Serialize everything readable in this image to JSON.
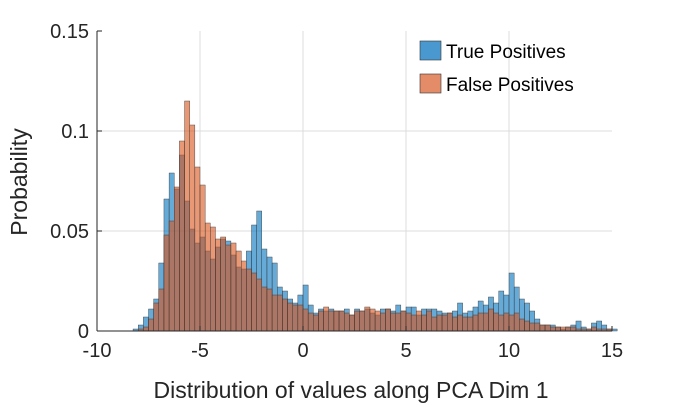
{
  "chart_data": {
    "type": "histogram",
    "title": "",
    "xlabel": "Distribution of values along PCA Dim 1",
    "ylabel": "Probability",
    "xlim": [
      -10,
      15
    ],
    "ylim": [
      0,
      0.15
    ],
    "xticks": [
      -10,
      -5,
      0,
      5,
      10,
      15
    ],
    "xtick_labels": [
      "-10",
      "-5",
      "0",
      "5",
      "10",
      "15"
    ],
    "yticks": [
      0,
      0.05,
      0.1,
      0.15
    ],
    "ytick_labels": [
      "0",
      "0.05",
      "0.1",
      "0.15"
    ],
    "grid": true,
    "legend_position": "top-right",
    "bin_edges_start": -8.5,
    "bin_width": 0.25,
    "series": [
      {
        "name": "True Positives",
        "color": "#0072BD",
        "values": [
          0.0,
          0.001,
          0.003,
          0.007,
          0.011,
          0.016,
          0.034,
          0.066,
          0.079,
          0.071,
          0.088,
          0.065,
          0.051,
          0.044,
          0.047,
          0.04,
          0.036,
          0.042,
          0.046,
          0.045,
          0.038,
          0.032,
          0.031,
          0.04,
          0.053,
          0.06,
          0.041,
          0.037,
          0.034,
          0.022,
          0.02,
          0.016,
          0.014,
          0.018,
          0.023,
          0.013,
          0.009,
          0.011,
          0.01,
          0.011,
          0.01,
          0.01,
          0.011,
          0.008,
          0.011,
          0.01,
          0.011,
          0.009,
          0.008,
          0.011,
          0.011,
          0.01,
          0.013,
          0.01,
          0.012,
          0.012,
          0.008,
          0.011,
          0.011,
          0.011,
          0.01,
          0.009,
          0.009,
          0.01,
          0.014,
          0.009,
          0.01,
          0.012,
          0.015,
          0.013,
          0.017,
          0.014,
          0.02,
          0.018,
          0.029,
          0.022,
          0.016,
          0.014,
          0.01,
          0.006,
          0.003,
          0.003,
          0.003,
          0.002,
          0.001,
          0.002,
          0.003,
          0.005,
          0.002,
          0.001,
          0.004,
          0.005,
          0.003,
          0.001,
          0.001,
          0.0,
          0.0,
          0.0,
          0.0,
          0.0,
          0.0,
          0.0
        ]
      },
      {
        "name": "False Positives",
        "color": "#D95319",
        "values": [
          0.0,
          0.0,
          0.001,
          0.002,
          0.006,
          0.014,
          0.021,
          0.048,
          0.055,
          0.072,
          0.095,
          0.115,
          0.103,
          0.082,
          0.073,
          0.054,
          0.052,
          0.046,
          0.047,
          0.043,
          0.044,
          0.04,
          0.035,
          0.031,
          0.029,
          0.026,
          0.022,
          0.021,
          0.018,
          0.018,
          0.016,
          0.014,
          0.013,
          0.013,
          0.011,
          0.009,
          0.008,
          0.01,
          0.012,
          0.01,
          0.01,
          0.01,
          0.009,
          0.008,
          0.01,
          0.01,
          0.012,
          0.011,
          0.01,
          0.009,
          0.011,
          0.009,
          0.009,
          0.01,
          0.009,
          0.008,
          0.01,
          0.008,
          0.01,
          0.007,
          0.008,
          0.008,
          0.009,
          0.007,
          0.008,
          0.007,
          0.007,
          0.008,
          0.009,
          0.009,
          0.011,
          0.009,
          0.008,
          0.009,
          0.008,
          0.009,
          0.006,
          0.005,
          0.004,
          0.004,
          0.003,
          0.003,
          0.002,
          0.002,
          0.002,
          0.002,
          0.002,
          0.001,
          0.001,
          0.001,
          0.002,
          0.001,
          0.001,
          0.001,
          0.0,
          0.0,
          0.0,
          0.0,
          0.0,
          0.0,
          0.0,
          0.0
        ]
      }
    ]
  }
}
